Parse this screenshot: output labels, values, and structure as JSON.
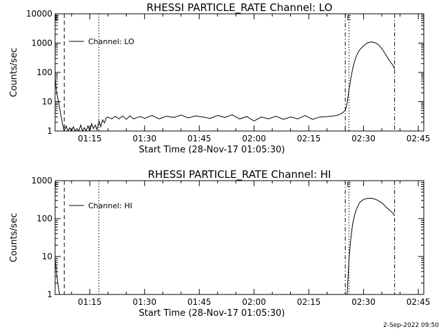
{
  "footer": "2-Sep-2022 09:50",
  "chart_data": [
    {
      "type": "line",
      "title": "RHESSI PARTICLE_RATE Channel: LO",
      "xlabel": "Start Time (28-Nov-17 01:05:30)",
      "ylabel": "Counts/sec",
      "legend": {
        "position": "top-left",
        "label": "Channel: LO"
      },
      "xlim": [
        "01:05:30",
        "02:46:30"
      ],
      "ylim": [
        1,
        10000
      ],
      "yscale": "log",
      "xticks": [
        "01:15",
        "01:30",
        "01:45",
        "02:00",
        "02:15",
        "02:30",
        "02:45"
      ],
      "yticks": [
        {
          "value": 1,
          "label": "1"
        },
        {
          "value": 10,
          "label": "10"
        },
        {
          "value": 100,
          "label": "100"
        },
        {
          "value": 1000,
          "label": "1000"
        },
        {
          "value": 10000,
          "label": "10000"
        }
      ],
      "marker_labels": [
        {
          "x": "01:06:00",
          "text": "E"
        },
        {
          "x": "02:26:00",
          "text": "E"
        }
      ],
      "vlines": [
        {
          "x": "01:08:00",
          "style": "dashed"
        },
        {
          "x": "01:17:30",
          "style": "dotted"
        },
        {
          "x": "02:25:00",
          "style": "dashdot"
        },
        {
          "x": "02:26:00",
          "style": "dotted"
        },
        {
          "x": "02:38:30",
          "style": "dashdot"
        }
      ],
      "series": [
        {
          "name": "Channel: LO",
          "x": [
            "01:05:30",
            "01:06:00",
            "01:06:30",
            "01:07:00",
            "01:07:30",
            "01:08:00",
            "01:08:30",
            "01:09:00",
            "01:09:30",
            "01:10:00",
            "01:10:30",
            "01:11:00",
            "01:11:30",
            "01:12:00",
            "01:12:30",
            "01:13:00",
            "01:13:30",
            "01:14:00",
            "01:14:30",
            "01:15:00",
            "01:15:30",
            "01:16:00",
            "01:16:30",
            "01:17:00",
            "01:17:30",
            "01:18:00",
            "01:18:30",
            "01:19:00",
            "01:19:30",
            "01:20:00",
            "01:21:00",
            "01:22:00",
            "01:23:00",
            "01:24:00",
            "01:25:00",
            "01:26:00",
            "01:27:00",
            "01:28:00",
            "01:29:00",
            "01:30:00",
            "01:32:00",
            "01:34:00",
            "01:36:00",
            "01:38:00",
            "01:40:00",
            "01:42:00",
            "01:44:00",
            "01:46:00",
            "01:48:00",
            "01:50:00",
            "01:52:00",
            "01:54:00",
            "01:56:00",
            "01:58:00",
            "02:00:00",
            "02:02:00",
            "02:04:00",
            "02:06:00",
            "02:08:00",
            "02:10:00",
            "02:12:00",
            "02:14:00",
            "02:16:00",
            "02:18:00",
            "02:20:00",
            "02:22:00",
            "02:23:00",
            "02:24:00",
            "02:25:00",
            "02:25:30",
            "02:26:00",
            "02:26:30",
            "02:27:00",
            "02:27:30",
            "02:28:00",
            "02:28:30",
            "02:29:00",
            "02:30:00",
            "02:31:00",
            "02:32:00",
            "02:33:00",
            "02:34:00",
            "02:35:00",
            "02:36:00",
            "02:37:00",
            "02:38:00",
            "02:38:30"
          ],
          "values": [
            60,
            18,
            9,
            4,
            1.8,
            1,
            1.5,
            1,
            1.3,
            1,
            1.4,
            1,
            1.2,
            1,
            1.6,
            1,
            1.3,
            1,
            1.5,
            1,
            1.8,
            1.2,
            1.6,
            1.1,
            2.2,
            1.4,
            2.4,
            1.9,
            2.8,
            3.0,
            2.6,
            3.2,
            2.6,
            3.3,
            2.5,
            3.3,
            2.6,
            2.9,
            3.1,
            2.7,
            3.4,
            2.6,
            3.2,
            2.9,
            3.5,
            2.8,
            3.3,
            3.0,
            2.7,
            3.4,
            2.9,
            3.6,
            2.6,
            3.1,
            2.2,
            3.0,
            2.6,
            3.2,
            2.5,
            3.0,
            2.6,
            3.4,
            2.5,
            3.0,
            3.1,
            3.3,
            3.5,
            4.0,
            5.0,
            9,
            25,
            60,
            130,
            230,
            350,
            480,
            600,
            800,
            1000,
            1100,
            1050,
            900,
            650,
            420,
            260,
            180,
            130
          ]
        }
      ]
    },
    {
      "type": "line",
      "title": "RHESSI PARTICLE_RATE Channel: HI",
      "xlabel": "Start Time (28-Nov-17 01:05:30)",
      "ylabel": "Counts/sec",
      "legend": {
        "position": "top-left",
        "label": "Channel: HI"
      },
      "xlim": [
        "01:05:30",
        "02:46:30"
      ],
      "ylim": [
        1,
        1000
      ],
      "yscale": "log",
      "xticks": [
        "01:15",
        "01:30",
        "01:45",
        "02:00",
        "02:15",
        "02:30",
        "02:45"
      ],
      "yticks": [
        {
          "value": 1,
          "label": "1"
        },
        {
          "value": 10,
          "label": "10"
        },
        {
          "value": 100,
          "label": "100"
        },
        {
          "value": 1000,
          "label": "1000"
        }
      ],
      "marker_labels": [
        {
          "x": "01:06:00",
          "text": "E"
        },
        {
          "x": "02:26:00",
          "text": "E"
        }
      ],
      "vlines": [
        {
          "x": "01:08:00",
          "style": "dashed"
        },
        {
          "x": "01:17:30",
          "style": "dotted"
        },
        {
          "x": "02:25:00",
          "style": "dashdot"
        },
        {
          "x": "02:26:00",
          "style": "dotted"
        },
        {
          "x": "02:38:30",
          "style": "dashdot"
        }
      ],
      "series": [
        {
          "name": "Channel: HI",
          "x": [
            "01:05:30",
            "01:06:00",
            "01:06:30",
            "01:06:45",
            "02:25:30",
            "02:26:00",
            "02:26:30",
            "02:27:00",
            "02:27:30",
            "02:28:00",
            "02:28:30",
            "02:29:00",
            "02:30:00",
            "02:31:00",
            "02:32:00",
            "02:33:00",
            "02:34:00",
            "02:35:00",
            "02:36:00",
            "02:37:00",
            "02:38:00",
            "02:38:30"
          ],
          "values": [
            9,
            3,
            1.3,
            1,
            1,
            8,
            30,
            70,
            120,
            170,
            220,
            270,
            320,
            340,
            345,
            330,
            300,
            260,
            210,
            170,
            140,
            120
          ]
        }
      ]
    }
  ]
}
